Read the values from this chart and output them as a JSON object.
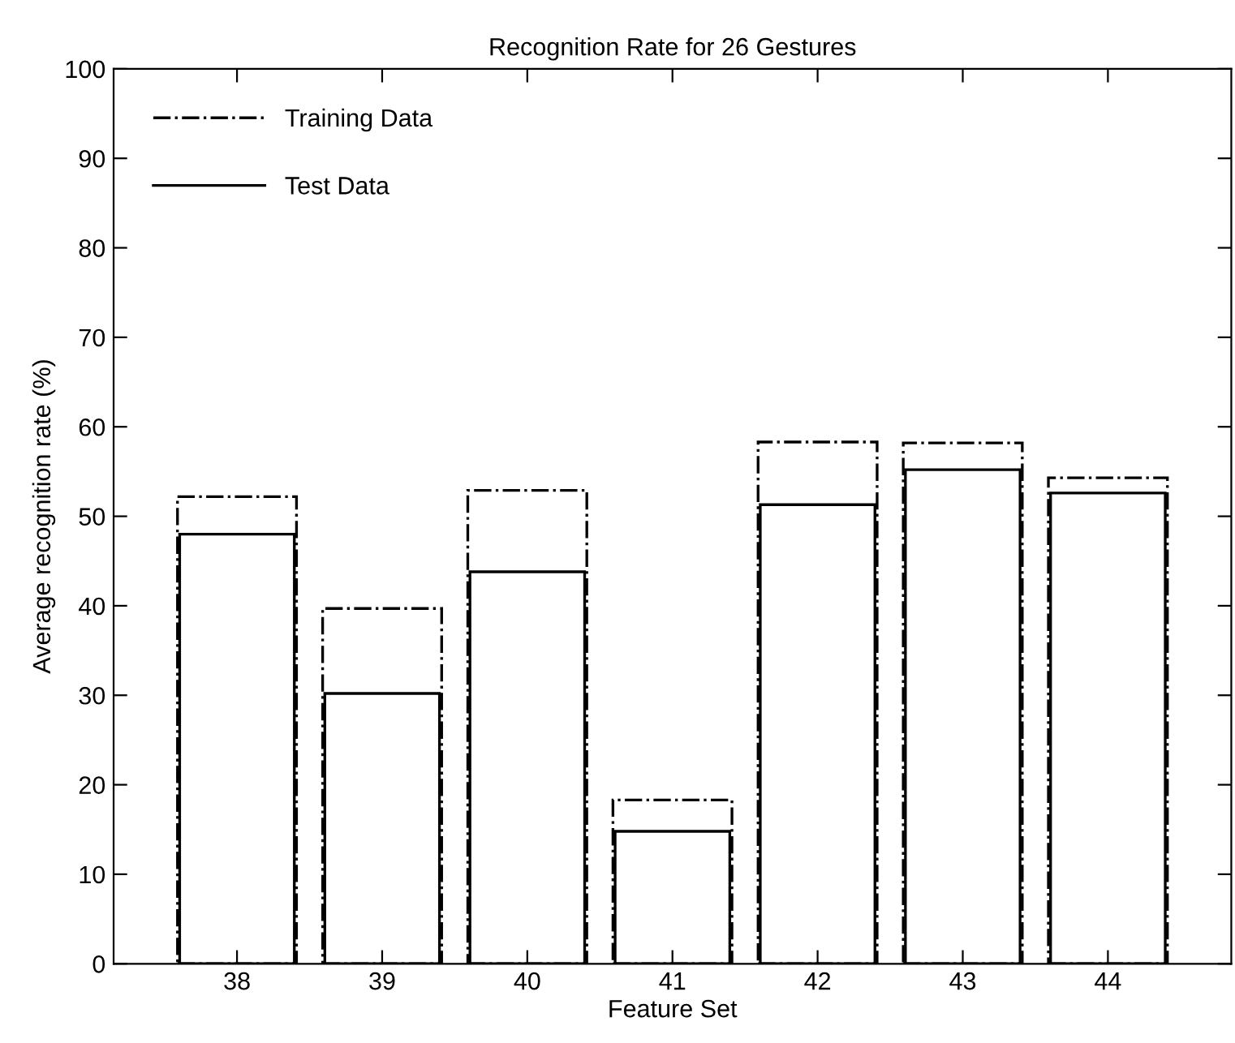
{
  "chart_data": {
    "type": "bar",
    "title": "Recognition Rate for 26 Gestures",
    "xlabel": "Feature Set",
    "ylabel": "Average recognition rate (%)",
    "categories": [
      "38",
      "39",
      "40",
      "41",
      "42",
      "43",
      "44"
    ],
    "series": [
      {
        "name": "Training Data",
        "color": "#000000",
        "line_style": "dashdot",
        "values": [
          52.2,
          39.7,
          52.9,
          18.3,
          58.3,
          58.2,
          54.3
        ]
      },
      {
        "name": "Test Data",
        "color": "#000000",
        "line_style": "solid",
        "values": [
          48.0,
          30.2,
          43.8,
          14.8,
          51.3,
          55.2,
          52.6
        ]
      }
    ],
    "ylim": [
      0,
      100
    ],
    "yticks": [
      0,
      10,
      20,
      30,
      40,
      50,
      60,
      70,
      80,
      90,
      100
    ],
    "grid": false,
    "legend": "top left"
  }
}
